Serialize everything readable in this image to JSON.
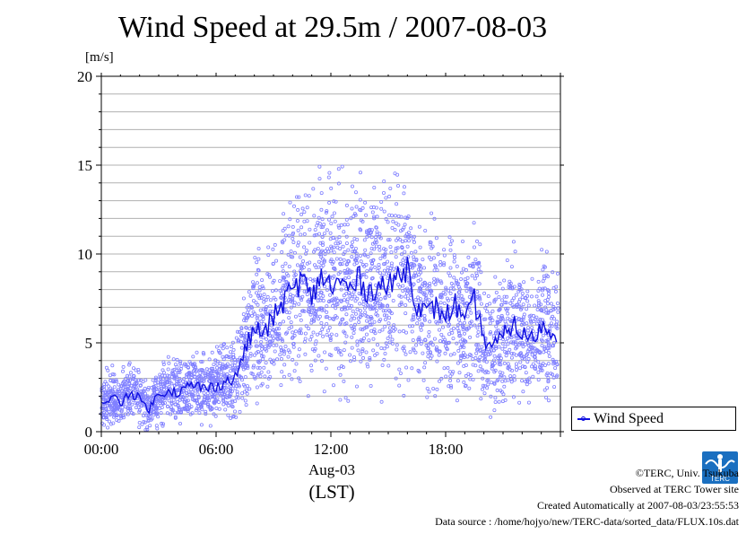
{
  "chart_data": {
    "type": "line",
    "title": "Wind Speed at 29.5m / 2007-08-03",
    "ylabel": "[m/s]",
    "xlabel_line1": "Aug-03",
    "xlabel_line2": "(LST)",
    "ylim": [
      0,
      20
    ],
    "xlim_hours": [
      0,
      24
    ],
    "yticks": [
      "0",
      "5",
      "10",
      "15",
      "20"
    ],
    "xticks": [
      {
        "hour": 0,
        "label": "00:00"
      },
      {
        "hour": 6,
        "label": "06:00"
      },
      {
        "hour": 12,
        "label": "12:00"
      },
      {
        "hour": 18,
        "label": "18:00"
      }
    ],
    "grid": true,
    "legend_position": "bottom-right outside",
    "series": [
      {
        "name": "Wind Speed",
        "color": "#1010e0",
        "scatter_color": "#8080ff",
        "x": [
          0,
          0.5,
          1,
          1.5,
          2,
          2.5,
          3,
          3.5,
          4,
          4.5,
          5,
          5.5,
          6,
          6.5,
          7,
          7.5,
          8,
          8.5,
          9,
          9.5,
          10,
          10.5,
          11,
          11.5,
          12,
          12.5,
          13,
          13.5,
          14,
          14.5,
          15,
          15.5,
          16,
          16.5,
          17,
          17.5,
          18,
          18.5,
          19,
          19.5,
          20,
          20.5,
          21,
          21.5,
          22,
          22.5,
          23,
          23.5
        ],
        "y": [
          1.5,
          2.0,
          1.6,
          2.3,
          1.8,
          1.3,
          2.1,
          2.4,
          2.2,
          2.5,
          2.6,
          2.4,
          2.6,
          2.8,
          3.0,
          4.6,
          5.8,
          5.5,
          6.4,
          7.3,
          8.0,
          8.6,
          7.4,
          8.9,
          8.1,
          8.4,
          8.0,
          8.6,
          7.8,
          8.4,
          8.0,
          8.8,
          9.3,
          7.2,
          6.6,
          7.0,
          6.5,
          7.2,
          6.0,
          7.4,
          5.2,
          4.8,
          5.3,
          6.1,
          5.5,
          5.2,
          5.9,
          5.6
        ]
      }
    ]
  },
  "credits": {
    "line1": "©TERC, Univ. Tsukuba",
    "line2": "Observed at TERC Tower site",
    "line3": "Created Automatically at 2007-08-03/23:55:53",
    "line4": "Data source : /home/hojyo/new/TERC-data/sorted_data/FLUX.10s.dat"
  },
  "logo": {
    "text": "TERC",
    "color": "#1a6fc0"
  }
}
